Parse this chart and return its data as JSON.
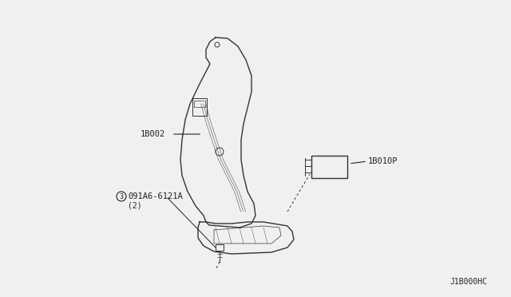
{
  "bg_color": "#f0f0f0",
  "line_color": "#333333",
  "label_color": "#222222",
  "title_code": "J1B000HC",
  "labels": {
    "part1": "1B002",
    "part2": "1B010P",
    "part3": "091A6-6121A",
    "part3_sub": "(2)",
    "part3_circle": "3"
  },
  "figsize": [
    6.4,
    3.72
  ],
  "dpi": 100
}
